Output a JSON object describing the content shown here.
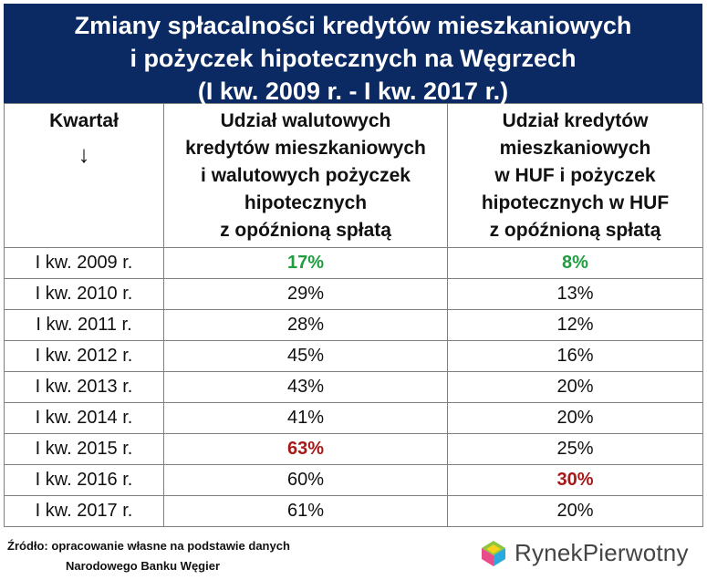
{
  "title": {
    "line1": "Zmiany spłacalności kredytów mieszkaniowych",
    "line2": "i pożyczek hipotecznych na Węgrzech",
    "line3": "(I kw. 2009 r. - I kw. 2017 r.)"
  },
  "headers": {
    "col1": "Kwartał",
    "col1_arrow": "↓",
    "col2": [
      "Udział walutowych",
      "kredytów mieszkaniowych",
      "i walutowych pożyczek",
      "hipotecznych",
      "z opóźnioną spłatą"
    ],
    "col3": [
      "Udział kredytów",
      "mieszkaniowych",
      "w HUF i pożyczek",
      "hipotecznych w HUF",
      "z opóźnioną spłatą"
    ]
  },
  "chart_data": {
    "type": "table",
    "columns": [
      "Kwartał",
      "Udział walutowych kredytów mieszkaniowych i walutowych pożyczek hipotecznych z opóźnioną spłatą",
      "Udział kredytów mieszkaniowych w HUF i pożyczek hipotecznych w HUF z opóźnioną spłatą"
    ],
    "rows": [
      {
        "quarter": "I kw. 2009 r.",
        "fx": "17%",
        "huf": "8%",
        "fx_style": "green",
        "huf_style": "green"
      },
      {
        "quarter": "I kw. 2010 r.",
        "fx": "29%",
        "huf": "13%",
        "fx_style": "",
        "huf_style": ""
      },
      {
        "quarter": "I kw. 2011 r.",
        "fx": "28%",
        "huf": "12%",
        "fx_style": "",
        "huf_style": ""
      },
      {
        "quarter": "I kw. 2012 r.",
        "fx": "45%",
        "huf": "16%",
        "fx_style": "",
        "huf_style": ""
      },
      {
        "quarter": "I kw. 2013 r.",
        "fx": "43%",
        "huf": "20%",
        "fx_style": "",
        "huf_style": ""
      },
      {
        "quarter": "I kw. 2014 r.",
        "fx": "41%",
        "huf": "20%",
        "fx_style": "",
        "huf_style": ""
      },
      {
        "quarter": "I kw. 2015 r.",
        "fx": "63%",
        "huf": "25%",
        "fx_style": "red",
        "huf_style": ""
      },
      {
        "quarter": "I kw. 2016 r.",
        "fx": "60%",
        "huf": "30%",
        "fx_style": "",
        "huf_style": "red"
      },
      {
        "quarter": "I kw. 2017 r.",
        "fx": "61%",
        "huf": "20%",
        "fx_style": "",
        "huf_style": ""
      }
    ]
  },
  "source": {
    "line1": "Źródło: opracowanie własne na podstawie danych",
    "line2": "Narodowego Banku Węgier"
  },
  "logo": {
    "text_a": "Rynek",
    "text_b": "Pierwotny",
    "icon": "house-cube-icon"
  },
  "colors": {
    "title_bg": "#0b2a63",
    "green": "#1e9e3e",
    "red": "#a81818"
  }
}
